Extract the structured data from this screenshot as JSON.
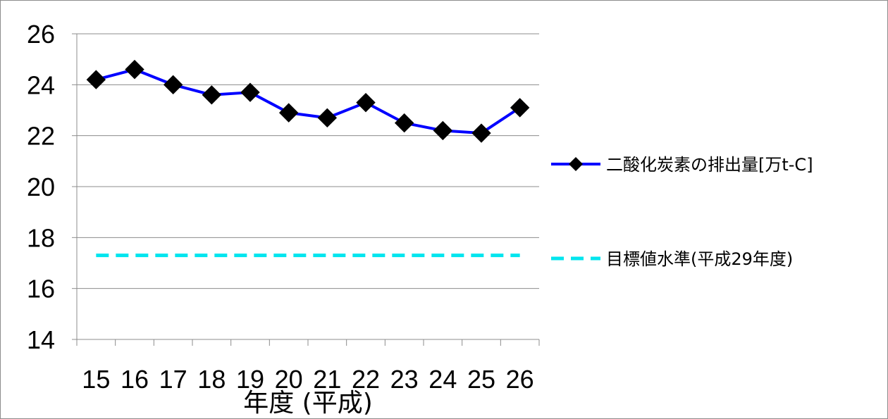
{
  "chart_data": {
    "type": "line",
    "title": "",
    "xlabel": "年度 (平成)",
    "ylabel": "",
    "x": [
      "15",
      "16",
      "17",
      "18",
      "19",
      "20",
      "21",
      "22",
      "23",
      "24",
      "25",
      "26"
    ],
    "ylim": [
      14,
      26
    ],
    "yticks": [
      "14",
      "16",
      "18",
      "20",
      "22",
      "24",
      "26"
    ],
    "grid": true,
    "legend_position": "right",
    "series": [
      {
        "name": "二酸化炭素の排出量[万t-C]",
        "values": [
          24.2,
          24.6,
          24.0,
          23.6,
          23.7,
          22.9,
          22.7,
          23.3,
          22.5,
          22.2,
          22.1,
          23.1
        ],
        "color": "#0000ff",
        "marker": "diamond",
        "marker_color": "#000000",
        "line_style": "solid"
      },
      {
        "name": "目標値水準(平成29年度)",
        "values": [
          17.3,
          17.3,
          17.3,
          17.3,
          17.3,
          17.3,
          17.3,
          17.3,
          17.3,
          17.3,
          17.3,
          17.3
        ],
        "color": "#00e5ee",
        "line_style": "dashed"
      }
    ]
  }
}
